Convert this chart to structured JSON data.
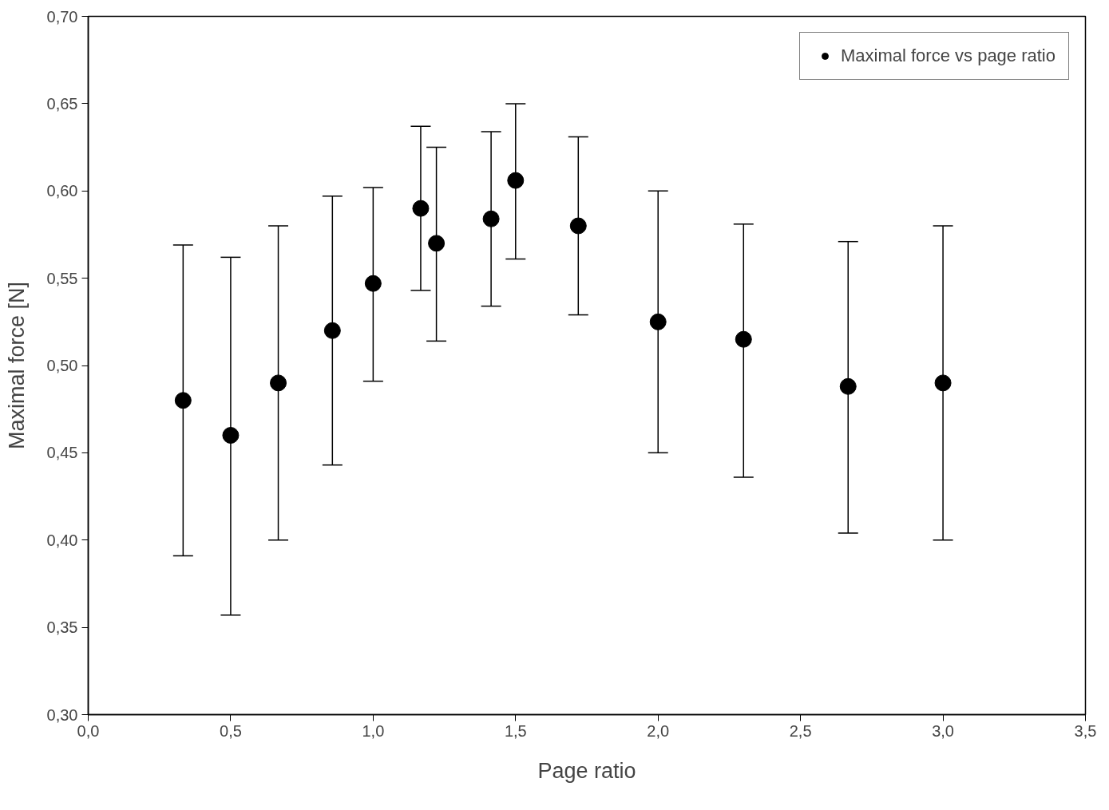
{
  "chart_data": {
    "type": "scatter",
    "xlabel": "Page ratio",
    "ylabel": "Maximal force [N]",
    "x": [
      0.333,
      0.5,
      0.667,
      0.857,
      1.0,
      1.167,
      1.222,
      1.414,
      1.5,
      1.72,
      2.0,
      2.3,
      2.667,
      3.0
    ],
    "series": [
      {
        "name": "Maximal force vs page ratio",
        "color": "#000000",
        "values": [
          0.48,
          0.46,
          0.49,
          0.52,
          0.547,
          0.59,
          0.57,
          0.584,
          0.606,
          0.58,
          0.525,
          0.515,
          0.488,
          0.49
        ],
        "errors": [
          [
            0.391,
            0.569
          ],
          [
            0.357,
            0.562
          ],
          [
            0.4,
            0.58
          ],
          [
            0.443,
            0.597
          ],
          [
            0.491,
            0.602
          ],
          [
            0.543,
            0.637
          ],
          [
            0.514,
            0.625
          ],
          [
            0.534,
            0.634
          ],
          [
            0.561,
            0.65
          ],
          [
            0.529,
            0.631
          ],
          [
            0.45,
            0.6
          ],
          [
            0.436,
            0.581
          ],
          [
            0.404,
            0.571
          ],
          [
            0.4,
            0.58
          ]
        ]
      }
    ],
    "xlim": [
      0.0,
      3.5
    ],
    "ylim": [
      0.3,
      0.7
    ],
    "xticks": [
      {
        "value": 0.0,
        "label": "0,0"
      },
      {
        "value": 0.5,
        "label": "0,5"
      },
      {
        "value": 1.0,
        "label": "1,0"
      },
      {
        "value": 1.5,
        "label": "1,5"
      },
      {
        "value": 2.0,
        "label": "2,0"
      },
      {
        "value": 2.5,
        "label": "2,5"
      },
      {
        "value": 3.0,
        "label": "3,0"
      },
      {
        "value": 3.5,
        "label": "3,5"
      }
    ],
    "yticks": [
      {
        "value": 0.3,
        "label": "0,30"
      },
      {
        "value": 0.35,
        "label": "0,35"
      },
      {
        "value": 0.4,
        "label": "0,40"
      },
      {
        "value": 0.45,
        "label": "0,45"
      },
      {
        "value": 0.5,
        "label": "0,50"
      },
      {
        "value": 0.55,
        "label": "0,55"
      },
      {
        "value": 0.6,
        "label": "0,60"
      },
      {
        "value": 0.65,
        "label": "0,65"
      },
      {
        "value": 0.7,
        "label": "0,70"
      }
    ],
    "grid": false,
    "legend": "top right",
    "marker": "circle"
  }
}
